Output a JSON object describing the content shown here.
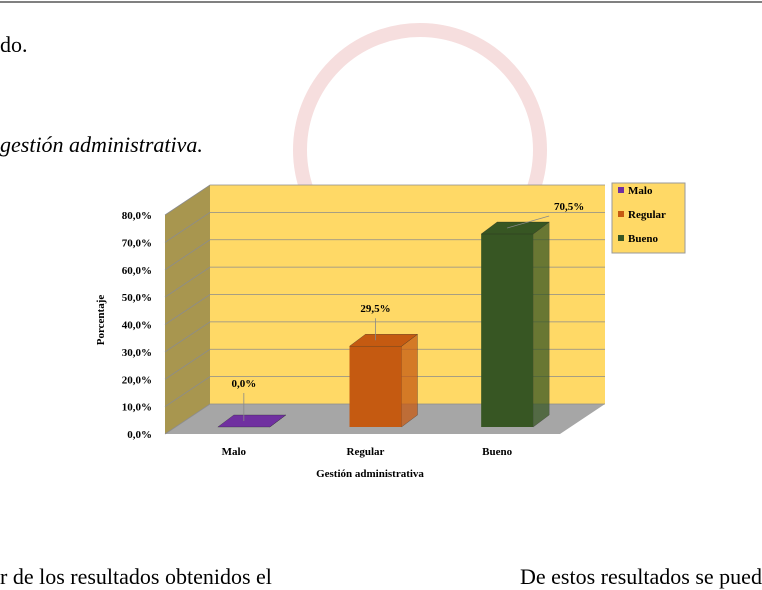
{
  "document": {
    "line_top": "do.",
    "caption": "gestión administrativa.",
    "bottom_left": "r de los resultados obtenidos el",
    "bottom_right": "De estos resultados se puede"
  },
  "chart_data": {
    "type": "bar3d",
    "x_label": "Gestión administrativa",
    "y_label": "Porcentaje",
    "categories": [
      "Malo",
      "Regular",
      "Bueno"
    ],
    "values": [
      0,
      29.5,
      70.5
    ],
    "value_labels": [
      "0,0%",
      "29,5%",
      "70,5%"
    ],
    "colors": [
      "#7030a0",
      "#c55a11",
      "#375623"
    ],
    "ylim": [
      0,
      80
    ],
    "yticks": [
      {
        "value": 0,
        "label": "0,0%"
      },
      {
        "value": 10,
        "label": "10,0%"
      },
      {
        "value": 20,
        "label": "20,0%"
      },
      {
        "value": 30,
        "label": "30,0%"
      },
      {
        "value": 40,
        "label": "40,0%"
      },
      {
        "value": 50,
        "label": "50,0%"
      },
      {
        "value": 60,
        "label": "60,0%"
      },
      {
        "value": 70,
        "label": "70,0%"
      },
      {
        "value": 80,
        "label": "80,0%"
      }
    ],
    "grid": true,
    "legend": "right"
  }
}
